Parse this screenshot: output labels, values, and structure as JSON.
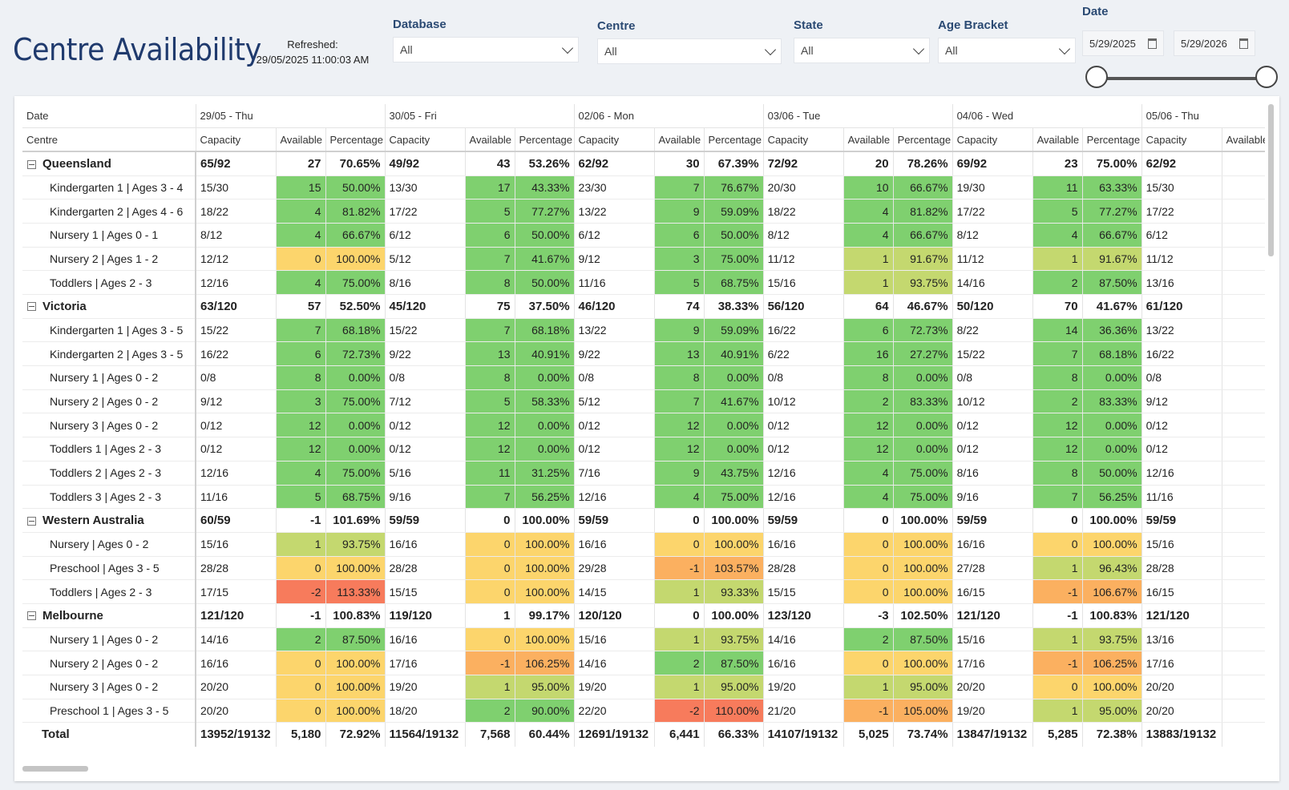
{
  "title": "Centre Availability",
  "refreshed": {
    "label": "Refreshed:",
    "value": "29/05/2025 11:00:03 AM"
  },
  "filters": [
    {
      "label": "Database",
      "value": "All"
    },
    {
      "label": "Centre",
      "value": "All"
    },
    {
      "label": "State",
      "value": "All"
    },
    {
      "label": "Age Bracket",
      "value": "All"
    }
  ],
  "date_filter": {
    "label": "Date",
    "start": "5/29/2025",
    "end": "5/29/2026"
  },
  "table": {
    "row_header_date": "Date",
    "row_header_centre": "Centre",
    "dates": [
      "29/05 - Thu",
      "30/05 - Fri",
      "02/06 - Mon",
      "03/06 - Tue",
      "04/06 - Wed",
      "05/06 - Thu"
    ],
    "columns": [
      "Capacity",
      "Available",
      "Percentage"
    ],
    "groups": [
      {
        "name": "Queensland",
        "values": [
          [
            "65/92",
            "27",
            "70.65%"
          ],
          [
            "49/92",
            "43",
            "53.26%"
          ],
          [
            "62/92",
            "30",
            "67.39%"
          ],
          [
            "72/92",
            "20",
            "78.26%"
          ],
          [
            "69/92",
            "23",
            "75.00%"
          ],
          [
            "62/92",
            "",
            ""
          ]
        ],
        "rows": [
          {
            "name": "Kindergarten 1 | Ages 3 - 4",
            "values": [
              [
                "15/30",
                "15",
                "50.00%"
              ],
              [
                "13/30",
                "17",
                "43.33%"
              ],
              [
                "23/30",
                "7",
                "76.67%"
              ],
              [
                "20/30",
                "10",
                "66.67%"
              ],
              [
                "19/30",
                "11",
                "63.33%"
              ],
              [
                "15/30",
                "",
                ""
              ]
            ]
          },
          {
            "name": "Kindergarten 2 | Ages 4 - 6",
            "values": [
              [
                "18/22",
                "4",
                "81.82%"
              ],
              [
                "17/22",
                "5",
                "77.27%"
              ],
              [
                "13/22",
                "9",
                "59.09%"
              ],
              [
                "18/22",
                "4",
                "81.82%"
              ],
              [
                "17/22",
                "5",
                "77.27%"
              ],
              [
                "17/22",
                "",
                ""
              ]
            ]
          },
          {
            "name": "Nursery 1 | Ages 0 - 1",
            "values": [
              [
                "8/12",
                "4",
                "66.67%"
              ],
              [
                "6/12",
                "6",
                "50.00%"
              ],
              [
                "6/12",
                "6",
                "50.00%"
              ],
              [
                "8/12",
                "4",
                "66.67%"
              ],
              [
                "8/12",
                "4",
                "66.67%"
              ],
              [
                "6/12",
                "",
                ""
              ]
            ]
          },
          {
            "name": "Nursery 2 | Ages 1 - 2",
            "values": [
              [
                "12/12",
                "0",
                "100.00%"
              ],
              [
                "5/12",
                "7",
                "41.67%"
              ],
              [
                "9/12",
                "3",
                "75.00%"
              ],
              [
                "11/12",
                "1",
                "91.67%"
              ],
              [
                "11/12",
                "1",
                "91.67%"
              ],
              [
                "11/12",
                "",
                ""
              ]
            ]
          },
          {
            "name": "Toddlers | Ages 2 - 3",
            "values": [
              [
                "12/16",
                "4",
                "75.00%"
              ],
              [
                "8/16",
                "8",
                "50.00%"
              ],
              [
                "11/16",
                "5",
                "68.75%"
              ],
              [
                "15/16",
                "1",
                "93.75%"
              ],
              [
                "14/16",
                "2",
                "87.50%"
              ],
              [
                "13/16",
                "",
                ""
              ]
            ]
          }
        ]
      },
      {
        "name": "Victoria",
        "values": [
          [
            "63/120",
            "57",
            "52.50%"
          ],
          [
            "45/120",
            "75",
            "37.50%"
          ],
          [
            "46/120",
            "74",
            "38.33%"
          ],
          [
            "56/120",
            "64",
            "46.67%"
          ],
          [
            "50/120",
            "70",
            "41.67%"
          ],
          [
            "61/120",
            "",
            ""
          ]
        ],
        "rows": [
          {
            "name": "Kindergarten 1 | Ages 3 - 5",
            "values": [
              [
                "15/22",
                "7",
                "68.18%"
              ],
              [
                "15/22",
                "7",
                "68.18%"
              ],
              [
                "13/22",
                "9",
                "59.09%"
              ],
              [
                "16/22",
                "6",
                "72.73%"
              ],
              [
                "8/22",
                "14",
                "36.36%"
              ],
              [
                "13/22",
                "",
                ""
              ]
            ]
          },
          {
            "name": "Kindergarten 2 | Ages 3 - 5",
            "values": [
              [
                "16/22",
                "6",
                "72.73%"
              ],
              [
                "9/22",
                "13",
                "40.91%"
              ],
              [
                "9/22",
                "13",
                "40.91%"
              ],
              [
                "6/22",
                "16",
                "27.27%"
              ],
              [
                "15/22",
                "7",
                "68.18%"
              ],
              [
                "16/22",
                "",
                ""
              ]
            ]
          },
          {
            "name": "Nursery 1 | Ages 0 - 2",
            "values": [
              [
                "0/8",
                "8",
                "0.00%"
              ],
              [
                "0/8",
                "8",
                "0.00%"
              ],
              [
                "0/8",
                "8",
                "0.00%"
              ],
              [
                "0/8",
                "8",
                "0.00%"
              ],
              [
                "0/8",
                "8",
                "0.00%"
              ],
              [
                "0/8",
                "",
                ""
              ]
            ]
          },
          {
            "name": "Nursery 2 | Ages 0 - 2",
            "values": [
              [
                "9/12",
                "3",
                "75.00%"
              ],
              [
                "7/12",
                "5",
                "58.33%"
              ],
              [
                "5/12",
                "7",
                "41.67%"
              ],
              [
                "10/12",
                "2",
                "83.33%"
              ],
              [
                "10/12",
                "2",
                "83.33%"
              ],
              [
                "9/12",
                "",
                ""
              ]
            ]
          },
          {
            "name": "Nursery 3 | Ages 0 - 2",
            "values": [
              [
                "0/12",
                "12",
                "0.00%"
              ],
              [
                "0/12",
                "12",
                "0.00%"
              ],
              [
                "0/12",
                "12",
                "0.00%"
              ],
              [
                "0/12",
                "12",
                "0.00%"
              ],
              [
                "0/12",
                "12",
                "0.00%"
              ],
              [
                "0/12",
                "",
                ""
              ]
            ]
          },
          {
            "name": "Toddlers 1 | Ages 2 - 3",
            "values": [
              [
                "0/12",
                "12",
                "0.00%"
              ],
              [
                "0/12",
                "12",
                "0.00%"
              ],
              [
                "0/12",
                "12",
                "0.00%"
              ],
              [
                "0/12",
                "12",
                "0.00%"
              ],
              [
                "0/12",
                "12",
                "0.00%"
              ],
              [
                "0/12",
                "",
                ""
              ]
            ]
          },
          {
            "name": "Toddlers 2 | Ages 2 - 3",
            "values": [
              [
                "12/16",
                "4",
                "75.00%"
              ],
              [
                "5/16",
                "11",
                "31.25%"
              ],
              [
                "7/16",
                "9",
                "43.75%"
              ],
              [
                "12/16",
                "4",
                "75.00%"
              ],
              [
                "8/16",
                "8",
                "50.00%"
              ],
              [
                "12/16",
                "",
                ""
              ]
            ]
          },
          {
            "name": "Toddlers 3 | Ages 2 - 3",
            "values": [
              [
                "11/16",
                "5",
                "68.75%"
              ],
              [
                "9/16",
                "7",
                "56.25%"
              ],
              [
                "12/16",
                "4",
                "75.00%"
              ],
              [
                "12/16",
                "4",
                "75.00%"
              ],
              [
                "9/16",
                "7",
                "56.25%"
              ],
              [
                "11/16",
                "",
                ""
              ]
            ]
          }
        ]
      },
      {
        "name": "Western Australia",
        "values": [
          [
            "60/59",
            "-1",
            "101.69%"
          ],
          [
            "59/59",
            "0",
            "100.00%"
          ],
          [
            "59/59",
            "0",
            "100.00%"
          ],
          [
            "59/59",
            "0",
            "100.00%"
          ],
          [
            "59/59",
            "0",
            "100.00%"
          ],
          [
            "59/59",
            "",
            ""
          ]
        ],
        "rows": [
          {
            "name": "Nursery | Ages 0 - 2",
            "values": [
              [
                "15/16",
                "1",
                "93.75%"
              ],
              [
                "16/16",
                "0",
                "100.00%"
              ],
              [
                "16/16",
                "0",
                "100.00%"
              ],
              [
                "16/16",
                "0",
                "100.00%"
              ],
              [
                "16/16",
                "0",
                "100.00%"
              ],
              [
                "15/16",
                "",
                ""
              ]
            ]
          },
          {
            "name": "Preschool | Ages 3 - 5",
            "values": [
              [
                "28/28",
                "0",
                "100.00%"
              ],
              [
                "28/28",
                "0",
                "100.00%"
              ],
              [
                "29/28",
                "-1",
                "103.57%"
              ],
              [
                "28/28",
                "0",
                "100.00%"
              ],
              [
                "27/28",
                "1",
                "96.43%"
              ],
              [
                "28/28",
                "",
                ""
              ]
            ]
          },
          {
            "name": "Toddlers | Ages 2 - 3",
            "values": [
              [
                "17/15",
                "-2",
                "113.33%"
              ],
              [
                "15/15",
                "0",
                "100.00%"
              ],
              [
                "14/15",
                "1",
                "93.33%"
              ],
              [
                "15/15",
                "0",
                "100.00%"
              ],
              [
                "16/15",
                "-1",
                "106.67%"
              ],
              [
                "16/15",
                "",
                ""
              ]
            ]
          }
        ]
      },
      {
        "name": "Melbourne",
        "values": [
          [
            "121/120",
            "-1",
            "100.83%"
          ],
          [
            "119/120",
            "1",
            "99.17%"
          ],
          [
            "120/120",
            "0",
            "100.00%"
          ],
          [
            "123/120",
            "-3",
            "102.50%"
          ],
          [
            "121/120",
            "-1",
            "100.83%"
          ],
          [
            "121/120",
            "",
            ""
          ]
        ],
        "rows": [
          {
            "name": "Nursery 1 | Ages 0 - 2",
            "values": [
              [
                "14/16",
                "2",
                "87.50%"
              ],
              [
                "16/16",
                "0",
                "100.00%"
              ],
              [
                "15/16",
                "1",
                "93.75%"
              ],
              [
                "14/16",
                "2",
                "87.50%"
              ],
              [
                "15/16",
                "1",
                "93.75%"
              ],
              [
                "13/16",
                "",
                ""
              ]
            ]
          },
          {
            "name": "Nursery 2 | Ages 0 - 2",
            "values": [
              [
                "16/16",
                "0",
                "100.00%"
              ],
              [
                "17/16",
                "-1",
                "106.25%"
              ],
              [
                "14/16",
                "2",
                "87.50%"
              ],
              [
                "16/16",
                "0",
                "100.00%"
              ],
              [
                "17/16",
                "-1",
                "106.25%"
              ],
              [
                "17/16",
                "",
                ""
              ]
            ]
          },
          {
            "name": "Nursery 3 | Ages 0 - 2",
            "values": [
              [
                "20/20",
                "0",
                "100.00%"
              ],
              [
                "19/20",
                "1",
                "95.00%"
              ],
              [
                "19/20",
                "1",
                "95.00%"
              ],
              [
                "19/20",
                "1",
                "95.00%"
              ],
              [
                "20/20",
                "0",
                "100.00%"
              ],
              [
                "20/20",
                "",
                ""
              ]
            ]
          },
          {
            "name": "Preschool 1 | Ages 3 - 5",
            "values": [
              [
                "20/20",
                "0",
                "100.00%"
              ],
              [
                "18/20",
                "2",
                "90.00%"
              ],
              [
                "22/20",
                "-2",
                "110.00%"
              ],
              [
                "21/20",
                "-1",
                "105.00%"
              ],
              [
                "19/20",
                "1",
                "95.00%"
              ],
              [
                "20/20",
                "",
                ""
              ]
            ]
          }
        ]
      }
    ],
    "total": {
      "label": "Total",
      "values": [
        [
          "13952/19132",
          "5,180",
          "72.92%"
        ],
        [
          "11564/19132",
          "7,568",
          "60.44%"
        ],
        [
          "12691/19132",
          "6,441",
          "66.33%"
        ],
        [
          "14107/19132",
          "5,025",
          "73.74%"
        ],
        [
          "13847/19132",
          "5,285",
          "72.38%"
        ],
        [
          "13883/19132",
          "",
          ""
        ]
      ]
    }
  },
  "colors": {
    "available_high": "#7fd06f",
    "available_mid": "#c4d86f",
    "available_zero": "#fcd56c",
    "available_neg1": "#fbb060",
    "available_neg2": "#f77b5c",
    "title": "#1f3a6d"
  }
}
